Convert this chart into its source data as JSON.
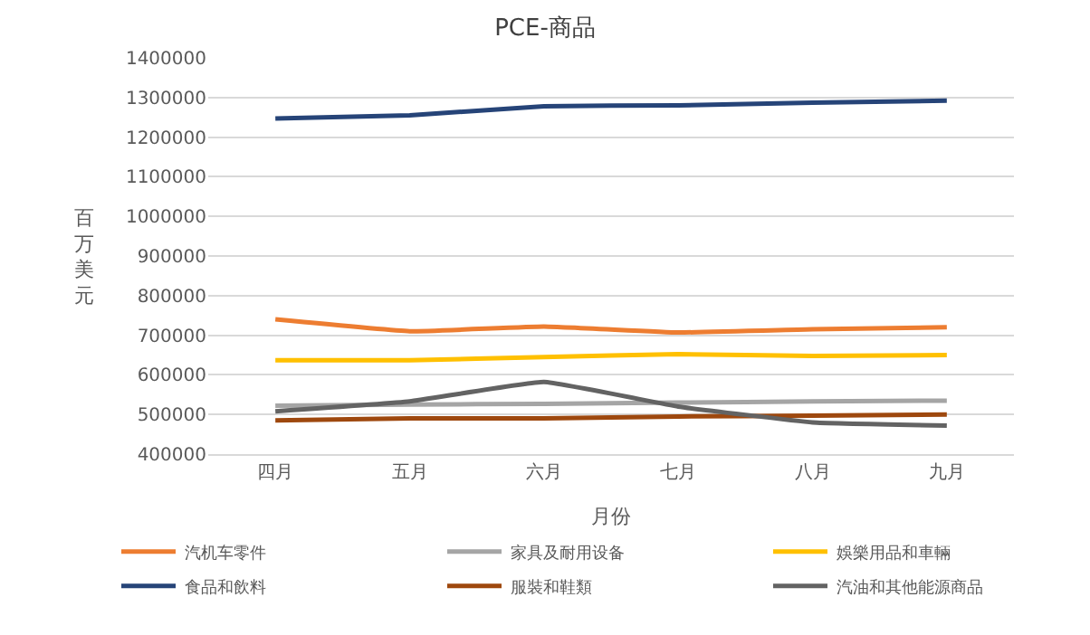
{
  "chart_data": {
    "type": "line",
    "title": "PCE-商品",
    "xlabel": "月份",
    "ylabel": "百万美元",
    "categories": [
      "四月",
      "五月",
      "六月",
      "七月",
      "八月",
      "九月"
    ],
    "series": [
      {
        "name": "汽机车零件",
        "color": "#ed7d31",
        "values": [
          740000,
          710000,
          722000,
          707000,
          715000,
          720000
        ]
      },
      {
        "name": "家具及耐用设备",
        "color": "#a5a5a5",
        "values": [
          522000,
          525000,
          527000,
          530000,
          533000,
          535000
        ]
      },
      {
        "name": "娛樂用品和車輛",
        "color": "#ffc000",
        "values": [
          637000,
          637000,
          645000,
          652000,
          648000,
          650000
        ]
      },
      {
        "name": "食品和飲料",
        "color": "#264478",
        "values": [
          1247000,
          1255000,
          1278000,
          1280000,
          1287000,
          1292000
        ]
      },
      {
        "name": "服裝和鞋類",
        "color": "#9e480e",
        "values": [
          485000,
          490000,
          490000,
          495000,
          497000,
          500000
        ]
      },
      {
        "name": "汽油和其他能源商品",
        "color": "#636363",
        "values": [
          508000,
          533000,
          582000,
          520000,
          480000,
          472000
        ]
      }
    ],
    "ylim": [
      400000,
      1400000
    ],
    "yticks": [
      400000,
      500000,
      600000,
      700000,
      800000,
      900000,
      1000000,
      1100000,
      1200000,
      1300000,
      1400000
    ],
    "grid": "y",
    "legend": "bottom",
    "marker": "none",
    "line_style": "solid"
  }
}
